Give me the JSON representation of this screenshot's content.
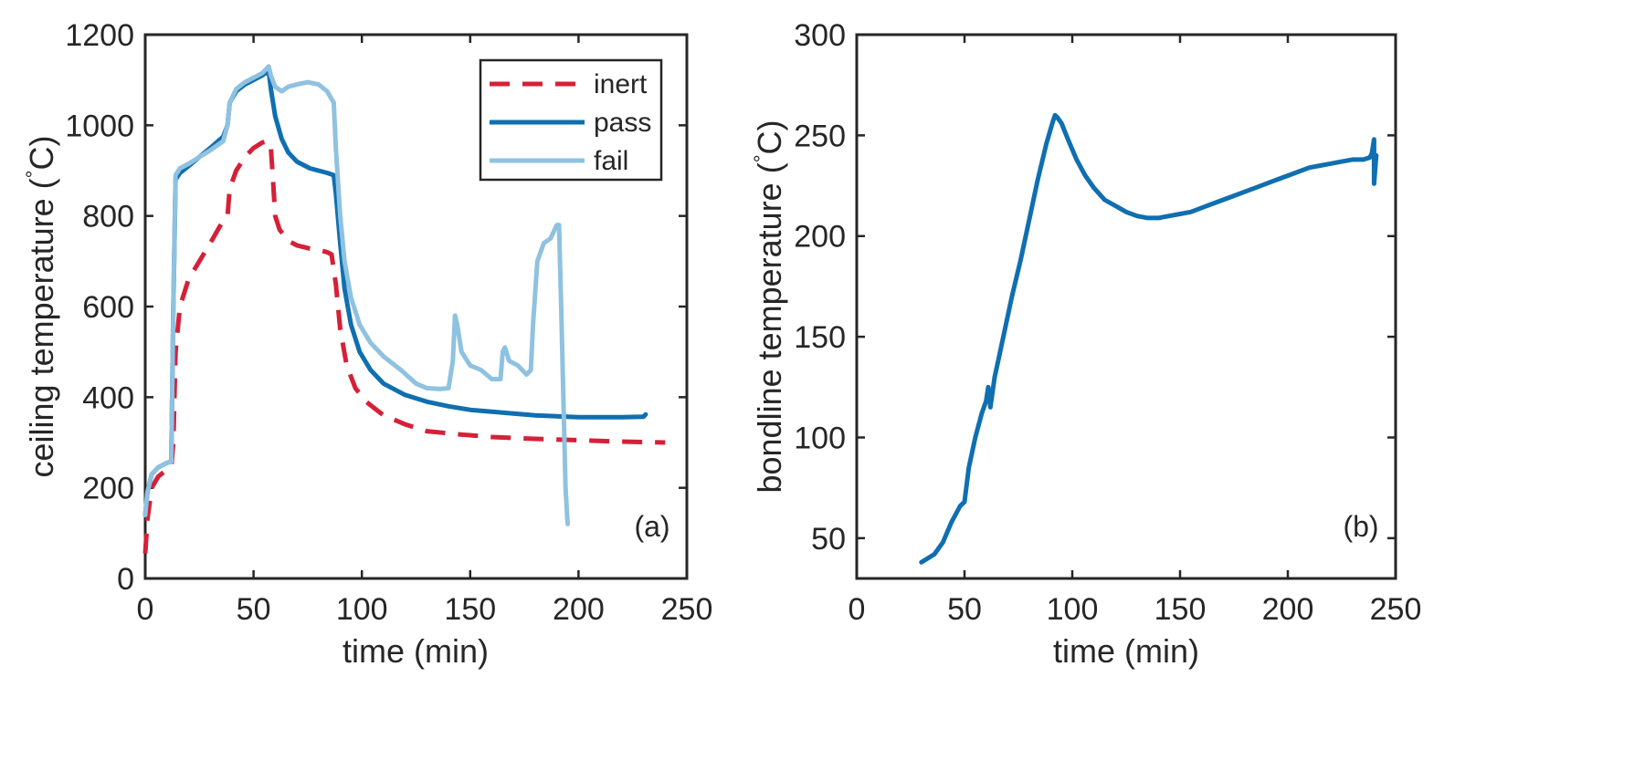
{
  "chart_data": [
    {
      "type": "line",
      "panel_label": "(a)",
      "xlabel": "time (min)",
      "ylabel": "ceiling temperature (",
      "ylabel_degree": "°",
      "ylabel_unit": "C)",
      "xlim": [
        0,
        250
      ],
      "ylim": [
        0,
        1200
      ],
      "xticks": [
        0,
        50,
        100,
        150,
        200,
        250
      ],
      "yticks": [
        0,
        200,
        400,
        600,
        800,
        1000,
        1200
      ],
      "legend_position": "top-right",
      "series": [
        {
          "name": "inert",
          "color": "#d62038",
          "style": "dashed",
          "points": [
            [
              0,
              55
            ],
            [
              1,
              130
            ],
            [
              3,
              200
            ],
            [
              6,
              225
            ],
            [
              10,
              240
            ],
            [
              12,
              245
            ],
            [
              13,
              300
            ],
            [
              14,
              500
            ],
            [
              16,
              600
            ],
            [
              20,
              660
            ],
            [
              25,
              700
            ],
            [
              30,
              740
            ],
            [
              36,
              790
            ],
            [
              38,
              800
            ],
            [
              39,
              860
            ],
            [
              42,
              900
            ],
            [
              46,
              930
            ],
            [
              50,
              950
            ],
            [
              54,
              962
            ],
            [
              57,
              965
            ],
            [
              58,
              950
            ],
            [
              59,
              880
            ],
            [
              60,
              800
            ],
            [
              62,
              770
            ],
            [
              66,
              745
            ],
            [
              70,
              735
            ],
            [
              76,
              728
            ],
            [
              80,
              725
            ],
            [
              84,
              720
            ],
            [
              86,
              715
            ],
            [
              88,
              650
            ],
            [
              90,
              550
            ],
            [
              93,
              470
            ],
            [
              97,
              420
            ],
            [
              102,
              390
            ],
            [
              110,
              360
            ],
            [
              120,
              340
            ],
            [
              130,
              325
            ],
            [
              145,
              318
            ],
            [
              160,
              312
            ],
            [
              180,
              308
            ],
            [
              200,
              305
            ],
            [
              220,
              302
            ],
            [
              240,
              300
            ]
          ]
        },
        {
          "name": "pass",
          "color": "#0f6fb0",
          "style": "solid",
          "points": [
            [
              0,
              140
            ],
            [
              1,
              190
            ],
            [
              3,
              230
            ],
            [
              6,
              245
            ],
            [
              10,
              255
            ],
            [
              12,
              258
            ],
            [
              13,
              600
            ],
            [
              14,
              880
            ],
            [
              16,
              895
            ],
            [
              20,
              910
            ],
            [
              25,
              930
            ],
            [
              30,
              950
            ],
            [
              36,
              975
            ],
            [
              38,
              1000
            ],
            [
              39,
              1050
            ],
            [
              42,
              1075
            ],
            [
              46,
              1090
            ],
            [
              50,
              1100
            ],
            [
              54,
              1110
            ],
            [
              57,
              1120
            ],
            [
              58,
              1080
            ],
            [
              60,
              1020
            ],
            [
              63,
              970
            ],
            [
              66,
              940
            ],
            [
              70,
              920
            ],
            [
              76,
              905
            ],
            [
              80,
              900
            ],
            [
              84,
              895
            ],
            [
              87,
              890
            ],
            [
              88,
              850
            ],
            [
              90,
              740
            ],
            [
              92,
              640
            ],
            [
              95,
              560
            ],
            [
              99,
              500
            ],
            [
              104,
              460
            ],
            [
              110,
              430
            ],
            [
              120,
              405
            ],
            [
              130,
              390
            ],
            [
              140,
              380
            ],
            [
              150,
              372
            ],
            [
              160,
              368
            ],
            [
              170,
              364
            ],
            [
              180,
              360
            ],
            [
              190,
              358
            ],
            [
              200,
              356
            ],
            [
              210,
              356
            ],
            [
              220,
              356
            ],
            [
              230,
              357
            ],
            [
              231,
              362
            ]
          ]
        },
        {
          "name": "fail",
          "color": "#8fc2e0",
          "style": "solid",
          "points": [
            [
              0,
              140
            ],
            [
              1,
              190
            ],
            [
              3,
              230
            ],
            [
              6,
              245
            ],
            [
              10,
              255
            ],
            [
              12,
              258
            ],
            [
              13,
              600
            ],
            [
              14,
              890
            ],
            [
              16,
              905
            ],
            [
              20,
              915
            ],
            [
              25,
              930
            ],
            [
              30,
              945
            ],
            [
              36,
              965
            ],
            [
              38,
              1000
            ],
            [
              39,
              1050
            ],
            [
              42,
              1080
            ],
            [
              46,
              1095
            ],
            [
              50,
              1105
            ],
            [
              54,
              1115
            ],
            [
              57,
              1130
            ],
            [
              58,
              1110
            ],
            [
              60,
              1085
            ],
            [
              63,
              1075
            ],
            [
              66,
              1085
            ],
            [
              70,
              1090
            ],
            [
              75,
              1095
            ],
            [
              80,
              1090
            ],
            [
              84,
              1075
            ],
            [
              87,
              1050
            ],
            [
              88,
              950
            ],
            [
              90,
              800
            ],
            [
              92,
              700
            ],
            [
              95,
              620
            ],
            [
              99,
              560
            ],
            [
              104,
              520
            ],
            [
              110,
              490
            ],
            [
              118,
              460
            ],
            [
              125,
              430
            ],
            [
              130,
              420
            ],
            [
              136,
              418
            ],
            [
              140,
              420
            ],
            [
              142,
              480
            ],
            [
              143,
              580
            ],
            [
              144,
              560
            ],
            [
              146,
              500
            ],
            [
              150,
              470
            ],
            [
              155,
              460
            ],
            [
              160,
              440
            ],
            [
              164,
              440
            ],
            [
              165,
              500
            ],
            [
              166,
              510
            ],
            [
              168,
              480
            ],
            [
              172,
              470
            ],
            [
              176,
              450
            ],
            [
              178,
              460
            ],
            [
              179,
              560
            ],
            [
              181,
              700
            ],
            [
              184,
              740
            ],
            [
              187,
              750
            ],
            [
              189,
              770
            ],
            [
              190,
              780
            ],
            [
              191,
              780
            ],
            [
              192,
              600
            ],
            [
              193,
              400
            ],
            [
              194,
              200
            ],
            [
              195,
              120
            ]
          ]
        }
      ]
    },
    {
      "type": "line",
      "panel_label": "(b)",
      "xlabel": "time (min)",
      "ylabel": "bondline temperature (",
      "ylabel_degree": "°",
      "ylabel_unit": "C)",
      "xlim": [
        0,
        250
      ],
      "ylim": [
        30,
        300
      ],
      "xticks": [
        0,
        50,
        100,
        150,
        200,
        250
      ],
      "yticks": [
        50,
        100,
        150,
        200,
        250,
        300
      ],
      "series": [
        {
          "name": "bondline",
          "color": "#0f6fb0",
          "style": "solid",
          "points": [
            [
              30,
              38
            ],
            [
              33,
              40
            ],
            [
              36,
              42
            ],
            [
              40,
              48
            ],
            [
              44,
              58
            ],
            [
              48,
              66
            ],
            [
              50,
              68
            ],
            [
              52,
              85
            ],
            [
              55,
              100
            ],
            [
              58,
              112
            ],
            [
              60,
              118
            ],
            [
              61,
              125
            ],
            [
              62,
              115
            ],
            [
              64,
              130
            ],
            [
              66,
              140
            ],
            [
              68,
              150
            ],
            [
              72,
              170
            ],
            [
              76,
              188
            ],
            [
              80,
              208
            ],
            [
              84,
              228
            ],
            [
              88,
              246
            ],
            [
              91,
              257
            ],
            [
              92,
              260
            ],
            [
              93,
              259
            ],
            [
              95,
              256
            ],
            [
              98,
              248
            ],
            [
              102,
              238
            ],
            [
              106,
              230
            ],
            [
              110,
              224
            ],
            [
              115,
              218
            ],
            [
              120,
              215
            ],
            [
              125,
              212
            ],
            [
              130,
              210
            ],
            [
              135,
              209
            ],
            [
              140,
              209
            ],
            [
              145,
              210
            ],
            [
              150,
              211
            ],
            [
              155,
              212
            ],
            [
              160,
              214
            ],
            [
              165,
              216
            ],
            [
              170,
              218
            ],
            [
              175,
              220
            ],
            [
              180,
              222
            ],
            [
              185,
              224
            ],
            [
              190,
              226
            ],
            [
              195,
              228
            ],
            [
              200,
              230
            ],
            [
              205,
              232
            ],
            [
              210,
              234
            ],
            [
              215,
              235
            ],
            [
              220,
              236
            ],
            [
              225,
              237
            ],
            [
              230,
              238
            ],
            [
              235,
              238
            ],
            [
              238,
              239
            ],
            [
              239,
              241
            ],
            [
              240,
              248
            ],
            [
              240,
              226
            ],
            [
              241,
              240
            ]
          ]
        }
      ]
    }
  ]
}
